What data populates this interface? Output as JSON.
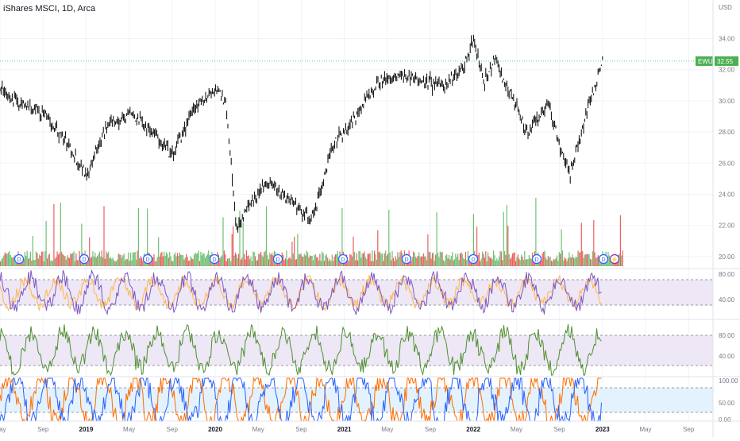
{
  "header": {
    "title": "iShares MSCI, 1D, Arca"
  },
  "price_axis": {
    "currency": "USD",
    "ticks": [
      "34.00",
      "32.00",
      "30.00",
      "28.00",
      "26.00",
      "24.00",
      "22.00",
      "20.00"
    ]
  },
  "last_price": {
    "symbol": "EWU",
    "value": "32.55"
  },
  "rsi_pane": {
    "ticks": [
      "80.00",
      "40.00"
    ]
  },
  "cci_pane": {
    "ticks": [
      "80.00",
      "40.00"
    ]
  },
  "stoch_pane": {
    "ticks": [
      "100.00",
      "50.00",
      "0.00"
    ]
  },
  "time_axis": {
    "labels": [
      "May",
      "Sep",
      "2019",
      "May",
      "Sep",
      "2020",
      "May",
      "Sep",
      "2021",
      "May",
      "Sep",
      "2022",
      "May",
      "Sep",
      "2023",
      "May",
      "Sep"
    ]
  },
  "event_markers": {
    "dividend_letter": "D",
    "count_dividends": 10,
    "split_symbol": "⚡"
  },
  "colors": {
    "up": "#26a69a",
    "down": "#ef5350",
    "candle": "#000000",
    "vol_up": "#4caf50",
    "vol_down": "#e53935",
    "rsi": "#7e57c2",
    "rsi_ma": "#ffb74d",
    "cci": "#4f8f2f",
    "stoch_k": "#2962ff",
    "stoch_d": "#ff6d00",
    "label_bg": "#4caf50",
    "band_purple": "#ede7f6",
    "band_blue": "#e3f2fd"
  },
  "chart_data": {
    "type": "line",
    "title": "iShares MSCI, 1D, Arca",
    "xlabel": "",
    "ylabel": "USD",
    "ylim": [
      19.6,
      35.0
    ],
    "x": [
      "2018-05",
      "2018-07",
      "2018-09",
      "2018-11",
      "2019-01",
      "2019-03",
      "2019-05",
      "2019-07",
      "2019-09",
      "2019-11",
      "2020-01",
      "2020-02",
      "2020-03",
      "2020-04",
      "2020-06",
      "2020-08",
      "2020-10",
      "2020-12",
      "2021-02",
      "2021-04",
      "2021-06",
      "2021-08",
      "2021-10",
      "2021-12",
      "2022-01",
      "2022-02",
      "2022-03",
      "2022-05",
      "2022-06",
      "2022-08",
      "2022-09",
      "2022-10",
      "2022-12",
      "2023-01"
    ],
    "series": [
      {
        "name": "EWU",
        "values": [
          30.6,
          29.8,
          29.2,
          27.5,
          25.3,
          28.4,
          29.2,
          28.2,
          26.4,
          29.5,
          30.8,
          29.9,
          21.8,
          23.1,
          24.9,
          23.6,
          22.4,
          27.2,
          28.9,
          31.2,
          31.6,
          31.4,
          30.9,
          32.0,
          33.9,
          31.1,
          32.6,
          29.6,
          27.9,
          29.9,
          27.1,
          25.4,
          30.4,
          32.55
        ]
      }
    ]
  }
}
